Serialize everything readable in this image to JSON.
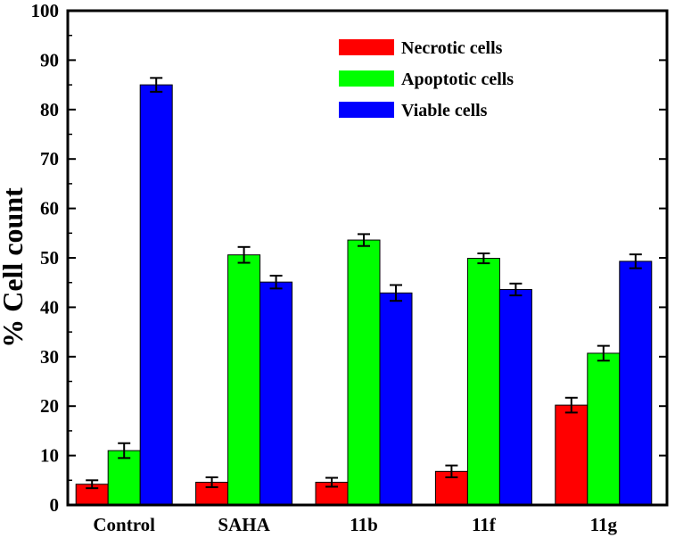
{
  "chart_data": {
    "type": "bar",
    "title": "",
    "xlabel": "",
    "ylabel": "% Cell count",
    "ylim": [
      0,
      100
    ],
    "y_ticks": [
      "0",
      "10",
      "20",
      "30",
      "40",
      "50",
      "60",
      "70",
      "80",
      "90",
      "100"
    ],
    "categories": [
      "Control",
      "SAHA",
      "11b",
      "11f",
      "11g"
    ],
    "series": [
      {
        "name": "Necrotic cells",
        "color": "#ff0000",
        "values": [
          4.2,
          4.6,
          4.6,
          6.8,
          20.2
        ],
        "errors": [
          0.8,
          1.0,
          0.9,
          1.2,
          1.5
        ]
      },
      {
        "name": "Apoptotic cells",
        "color": "#00ff00",
        "values": [
          11.0,
          50.6,
          53.6,
          49.9,
          30.7
        ],
        "errors": [
          1.5,
          1.6,
          1.2,
          1.0,
          1.5
        ]
      },
      {
        "name": "Viable cells",
        "color": "#0000ff",
        "values": [
          85.0,
          45.1,
          42.9,
          43.6,
          49.3
        ],
        "errors": [
          1.4,
          1.3,
          1.6,
          1.2,
          1.4
        ]
      }
    ],
    "legend_position": "top-right",
    "grid": false,
    "error_bars": true
  }
}
